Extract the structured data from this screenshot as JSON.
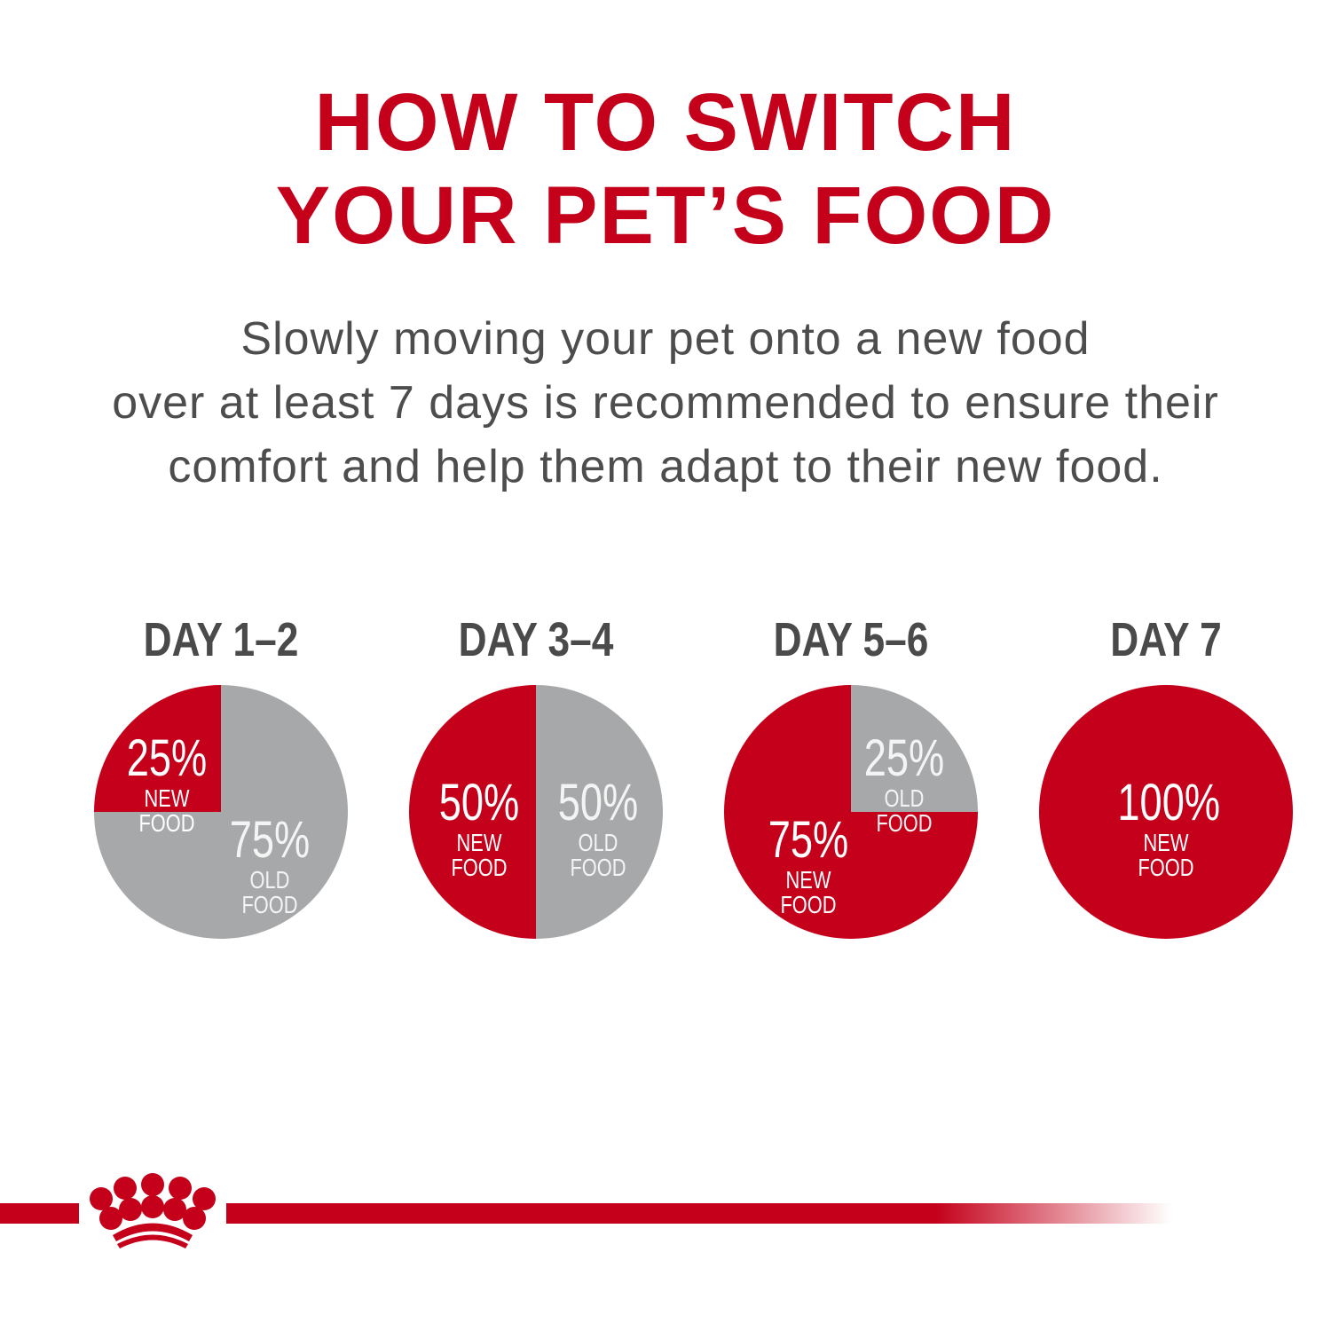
{
  "title": {
    "line1": "HOW TO SWITCH",
    "line2": "YOUR PET’S FOOD"
  },
  "description": {
    "line1": "Slowly moving your pet onto a new food",
    "line2": "over at least 7 days is recommended to ensure their",
    "line3": "comfort and help them adapt to their new food."
  },
  "colors": {
    "new_food": "#c4001a",
    "old_food": "#a7a8aa",
    "title": "#c4001a",
    "text": "#4d4d4d"
  },
  "chart_data": {
    "type": "pie",
    "series_names": [
      "NEW FOOD",
      "OLD FOOD"
    ],
    "pies": [
      {
        "day": "DAY 1–2",
        "new_food": 25,
        "old_food": 75,
        "labels": [
          {
            "pct": "25%",
            "sub": "NEW FOOD"
          },
          {
            "pct": "75%",
            "sub": "OLD FOOD"
          }
        ]
      },
      {
        "day": "DAY 3–4",
        "new_food": 50,
        "old_food": 50,
        "labels": [
          {
            "pct": "50%",
            "sub": "NEW FOOD"
          },
          {
            "pct": "50%",
            "sub": "OLD FOOD"
          }
        ]
      },
      {
        "day": "DAY 5–6",
        "new_food": 75,
        "old_food": 25,
        "labels": [
          {
            "pct": "75%",
            "sub": "NEW FOOD"
          },
          {
            "pct": "25%",
            "sub": "OLD FOOD"
          }
        ]
      },
      {
        "day": "DAY 7",
        "new_food": 100,
        "old_food": 0,
        "labels": [
          {
            "pct": "100%",
            "sub": "NEW FOOD"
          }
        ]
      }
    ]
  },
  "footer": {
    "logo_icon": "crown-icon"
  }
}
